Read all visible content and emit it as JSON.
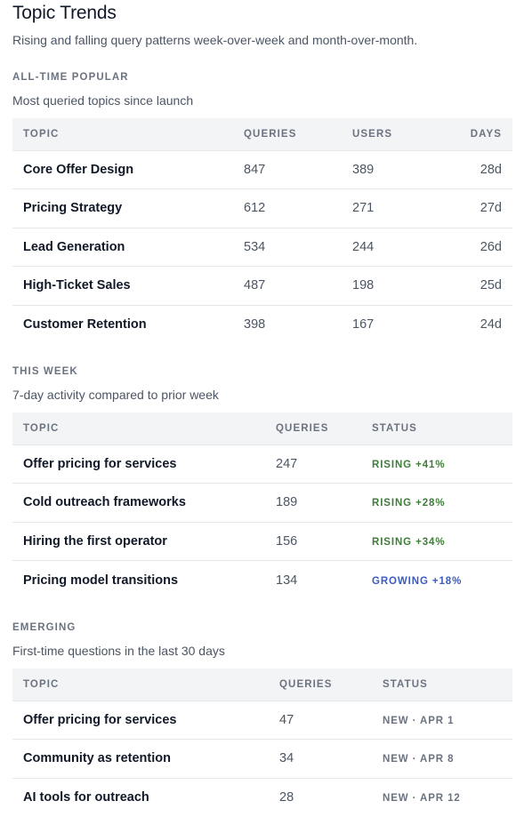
{
  "header": {
    "title": "Topic Trends",
    "subtitle": "Rising and falling query patterns week-over-week and month-over-month."
  },
  "popular": {
    "label": "ALL-TIME POPULAR",
    "description": "Most queried topics since launch",
    "columns": [
      "TOPIC",
      "QUERIES",
      "USERS",
      "DAYS"
    ],
    "rows": [
      {
        "topic": "Core Offer Design",
        "queries": "847",
        "users": "389",
        "days": "28d"
      },
      {
        "topic": "Pricing Strategy",
        "queries": "612",
        "users": "271",
        "days": "27d"
      },
      {
        "topic": "Lead Generation",
        "queries": "534",
        "users": "244",
        "days": "26d"
      },
      {
        "topic": "High-Ticket Sales",
        "queries": "487",
        "users": "198",
        "days": "25d"
      },
      {
        "topic": "Customer Retention",
        "queries": "398",
        "users": "167",
        "days": "24d"
      }
    ]
  },
  "week": {
    "label": "THIS WEEK",
    "description": "7-day activity compared to prior week",
    "columns": [
      "TOPIC",
      "QUERIES",
      "STATUS"
    ],
    "rows": [
      {
        "topic": "Offer pricing for services",
        "queries": "247",
        "status": "RISING +41%"
      },
      {
        "topic": "Cold outreach frameworks",
        "queries": "189",
        "status": "RISING +28%"
      },
      {
        "topic": "Hiring the first operator",
        "queries": "156",
        "status": "RISING +34%"
      },
      {
        "topic": "Pricing model transitions",
        "queries": "134",
        "status": "GROWING +18%"
      }
    ]
  },
  "emerging": {
    "label": "EMERGING",
    "description": "First-time questions in the last 30 days",
    "columns": [
      "TOPIC",
      "QUERIES",
      "STATUS"
    ],
    "rows": [
      {
        "topic": "Offer pricing for services",
        "queries": "47",
        "status": "NEW · APR 1"
      },
      {
        "topic": "Community as retention",
        "queries": "34",
        "status": "NEW · APR 8"
      },
      {
        "topic": "AI tools for outreach",
        "queries": "28",
        "status": "NEW · APR 12"
      }
    ]
  },
  "colors": {
    "rising": "#3f7d3a",
    "growing": "#3b5bc4",
    "new": "#6b7280"
  }
}
